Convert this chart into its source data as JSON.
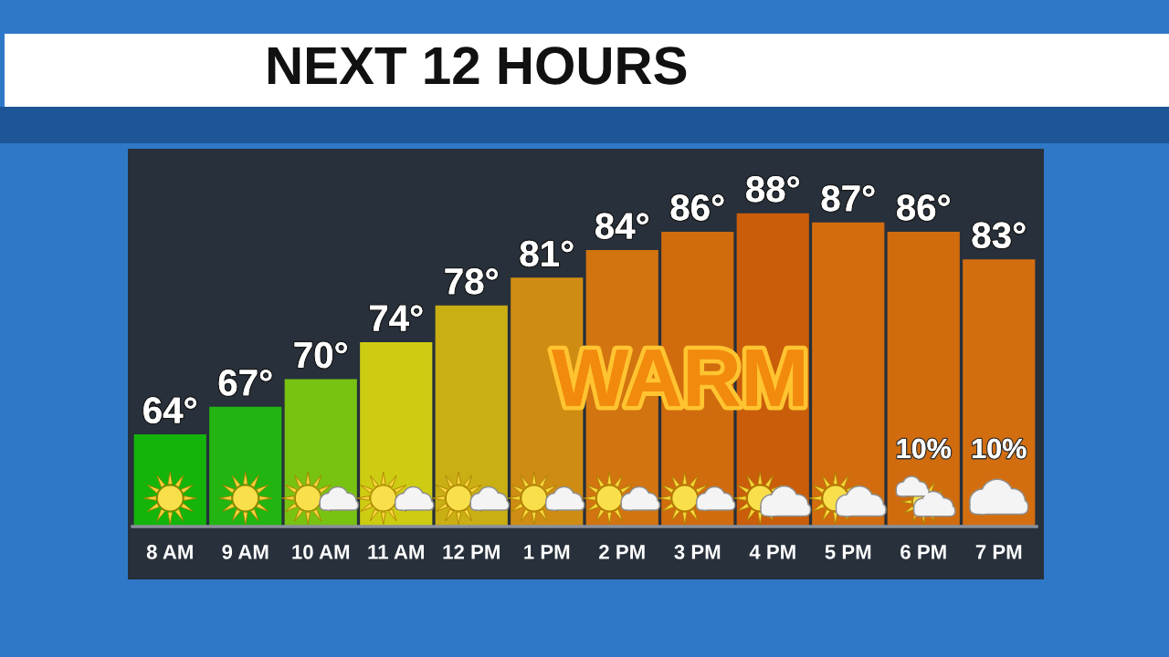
{
  "chart_data": {
    "type": "bar",
    "title": "NEXT 12 HOURS",
    "categories": [
      "8 AM",
      "9 AM",
      "10 AM",
      "11 AM",
      "12 PM",
      "1 PM",
      "2 PM",
      "3 PM",
      "4 PM",
      "5 PM",
      "6 PM",
      "7 PM"
    ],
    "values": [
      64,
      67,
      70,
      74,
      78,
      81,
      84,
      86,
      88,
      87,
      86,
      83
    ],
    "colors": [
      "#15b40b",
      "#22b511",
      "#78c212",
      "#cdcc12",
      "#c9ae14",
      "#cf8c12",
      "#d27410",
      "#d06c0e",
      "#c95d0a",
      "#d26c0e",
      "#d06c0e",
      "#d36e10"
    ],
    "value_labels": [
      "64°",
      "67°",
      "70°",
      "74°",
      "78°",
      "81°",
      "84°",
      "86°",
      "88°",
      "87°",
      "86°",
      "83°"
    ],
    "ylim": [
      54,
      95
    ],
    "tick_labels": "x",
    "annotations": [
      "WARM",
      "10%",
      "10%"
    ]
  }
}
